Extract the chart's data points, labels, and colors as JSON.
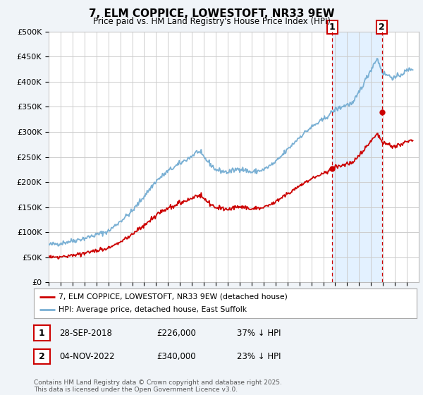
{
  "title": "7, ELM COPPICE, LOWESTOFT, NR33 9EW",
  "subtitle": "Price paid vs. HM Land Registry's House Price Index (HPI)",
  "ylim": [
    0,
    500000
  ],
  "yticks": [
    0,
    50000,
    100000,
    150000,
    200000,
    250000,
    300000,
    350000,
    400000,
    450000,
    500000
  ],
  "ytick_labels": [
    "£0",
    "£50K",
    "£100K",
    "£150K",
    "£200K",
    "£250K",
    "£300K",
    "£350K",
    "£400K",
    "£450K",
    "£500K"
  ],
  "hpi_color": "#7ab0d4",
  "hpi_fill_color": "#ddeeff",
  "price_color": "#cc0000",
  "sale1_date": "28-SEP-2018",
  "sale1_price": 226000,
  "sale1_hpi_pct": "37%",
  "sale2_date": "04-NOV-2022",
  "sale2_price": 340000,
  "sale2_hpi_pct": "23%",
  "legend_label1": "7, ELM COPPICE, LOWESTOFT, NR33 9EW (detached house)",
  "legend_label2": "HPI: Average price, detached house, East Suffolk",
  "footer": "Contains HM Land Registry data © Crown copyright and database right 2025.\nThis data is licensed under the Open Government Licence v3.0.",
  "background_color": "#f0f4f8",
  "plot_bg_color": "#ffffff",
  "grid_color": "#cccccc",
  "sale1_year": 2018.75,
  "sale2_year": 2022.917,
  "xmin": 1995,
  "xmax": 2026
}
